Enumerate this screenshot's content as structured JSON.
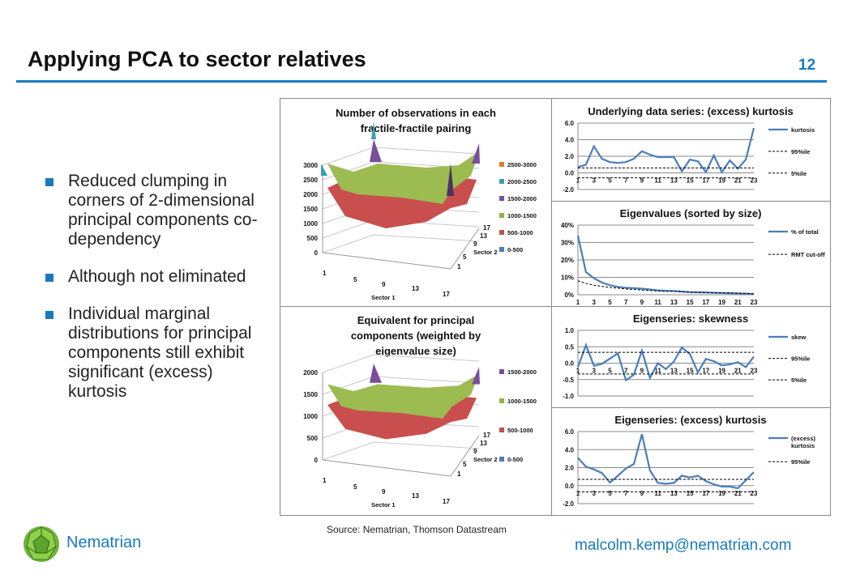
{
  "slide": {
    "title": "Applying PCA to sector relatives",
    "page_number": "12",
    "bullets": [
      "Reduced clumping in corners of 2-dimensional principal components co-dependency",
      "Although not eliminated",
      "Individual marginal distributions for principal components still exhibit significant (excess) kurtosis"
    ],
    "source": "Source: Nematrian, Thomson Datastream",
    "brand": "Nematrian",
    "email": "malcolm.kemp@nematrian.com"
  },
  "colors": {
    "accent": "#1a7abf",
    "series": "#4a7ebb",
    "dashed": "#000000"
  },
  "chart_data": [
    {
      "type": "surface",
      "title": "Number of observations in each fractile-fractile pairing",
      "xlabel": "Sector 1",
      "ylabel": "Sector 2",
      "zticks": [
        "0",
        "500",
        "1000",
        "1500",
        "2000",
        "2500",
        "3000"
      ],
      "xticks": [
        "1",
        "5",
        "9",
        "13",
        "17"
      ],
      "yticks": [
        "1",
        "5",
        "9",
        "13",
        "17"
      ],
      "legend": [
        "2500-3000",
        "2000-2500",
        "1500-2000",
        "1000-1500",
        "500-1000",
        "0-500"
      ],
      "legend_colors": [
        "#e07b2c",
        "#3b9db3",
        "#7a4e9c",
        "#8db446",
        "#c0504d",
        "#4a7ebb"
      ]
    },
    {
      "type": "line",
      "title": "Underlying data series: (excess) kurtosis",
      "x": [
        1,
        2,
        3,
        4,
        5,
        6,
        7,
        8,
        9,
        10,
        11,
        12,
        13,
        14,
        15,
        16,
        17,
        18,
        19,
        20,
        21,
        22,
        23
      ],
      "xticks": [
        "1",
        "3",
        "5",
        "7",
        "9",
        "11",
        "13",
        "15",
        "17",
        "19",
        "21",
        "23"
      ],
      "ylim": [
        -2,
        6
      ],
      "yticks": [
        "-2.0",
        "0.0",
        "2.0",
        "4.0",
        "6.0"
      ],
      "ytick_values": [
        -2,
        0,
        2,
        4,
        6
      ],
      "series": [
        {
          "name": "kurtosis",
          "style": "solid",
          "values": [
            0.7,
            1.0,
            3.2,
            1.7,
            1.3,
            1.2,
            1.3,
            1.7,
            2.6,
            2.2,
            1.9,
            1.9,
            1.9,
            0.2,
            1.6,
            1.4,
            0.1,
            2.1,
            0.1,
            1.5,
            0.5,
            1.6,
            5.4
          ]
        },
        {
          "name": "95%ile",
          "style": "dashed",
          "constant": 0.6
        },
        {
          "name": "5%ile",
          "style": "dashed",
          "constant": -0.6
        }
      ]
    },
    {
      "type": "line",
      "title": "Eigenvalues (sorted by size)",
      "x": [
        1,
        2,
        3,
        4,
        5,
        6,
        7,
        8,
        9,
        10,
        11,
        12,
        13,
        14,
        15,
        16,
        17,
        18,
        19,
        20,
        21,
        22,
        23
      ],
      "xticks": [
        "1",
        "3",
        "5",
        "7",
        "9",
        "11",
        "13",
        "15",
        "17",
        "19",
        "21",
        "23"
      ],
      "ylim": [
        0,
        40
      ],
      "yticks": [
        "0%",
        "10%",
        "20%",
        "30%",
        "40%"
      ],
      "ytick_values": [
        0,
        10,
        20,
        30,
        40
      ],
      "series": [
        {
          "name": "% of total",
          "style": "solid",
          "values": [
            34,
            13,
            9.5,
            7,
            5.5,
            4.5,
            4,
            3.8,
            3.5,
            3,
            2.5,
            2.3,
            2.2,
            1.8,
            1.5,
            1.4,
            1.3,
            1.1,
            1,
            0.9,
            0.8,
            0.6,
            0.4
          ]
        },
        {
          "name": "RMT cut-off",
          "style": "dashed",
          "values": [
            8,
            6.5,
            5.5,
            4.8,
            4.2,
            3.8,
            3.3,
            3,
            2.7,
            2.4,
            2.2,
            2,
            1.9,
            1.7,
            1.5,
            1.4,
            1.3,
            1.2,
            1.1,
            1,
            0.9,
            0.8,
            0.6
          ]
        }
      ]
    },
    {
      "type": "surface",
      "title": "Equivalent for principal components (weighted by eigenvalue size)",
      "xlabel": "Sector 1",
      "ylabel": "Sector 2",
      "zticks": [
        "0",
        "500",
        "1000",
        "1500",
        "2000"
      ],
      "xticks": [
        "1",
        "5",
        "9",
        "13",
        "17"
      ],
      "yticks": [
        "1",
        "5",
        "9",
        "13",
        "17"
      ],
      "legend": [
        "1500-2000",
        "1000-1500",
        "500-1000",
        "0-500"
      ],
      "legend_colors": [
        "#7a4e9c",
        "#8db446",
        "#c0504d",
        "#4a7ebb"
      ]
    },
    {
      "type": "line",
      "title": "Eigenseries: skewness",
      "x": [
        1,
        2,
        3,
        4,
        5,
        6,
        7,
        8,
        9,
        10,
        11,
        12,
        13,
        14,
        15,
        16,
        17,
        18,
        19,
        20,
        21,
        22,
        23
      ],
      "xticks": [
        "1",
        "3",
        "5",
        "7",
        "9",
        "11",
        "13",
        "15",
        "17",
        "19",
        "21",
        "23"
      ],
      "ylim": [
        -1,
        1
      ],
      "yticks": [
        "-1.0",
        "-0.5",
        "0.0",
        "0.5",
        "1.0"
      ],
      "ytick_values": [
        -1,
        -0.5,
        0,
        0.5,
        1
      ],
      "series": [
        {
          "name": "skew",
          "style": "solid",
          "values": [
            -0.12,
            0.55,
            -0.08,
            -0.02,
            0.14,
            0.3,
            -0.52,
            -0.35,
            0.38,
            -0.45,
            0,
            -0.18,
            0.05,
            0.48,
            0.28,
            -0.28,
            0.13,
            0.06,
            -0.07,
            -0.04,
            0.03,
            -0.12,
            0.2
          ]
        },
        {
          "name": "95%ile",
          "style": "dashed",
          "constant": 0.33
        },
        {
          "name": "5%ile",
          "style": "dashed",
          "constant": -0.33
        }
      ]
    },
    {
      "type": "line",
      "title": "Eigenseries: (excess) kurtosis",
      "x": [
        1,
        2,
        3,
        4,
        5,
        6,
        7,
        8,
        9,
        10,
        11,
        12,
        13,
        14,
        15,
        16,
        17,
        18,
        19,
        20,
        21,
        22,
        23
      ],
      "xticks": [
        "1",
        "3",
        "5",
        "7",
        "9",
        "11",
        "13",
        "15",
        "17",
        "19",
        "21",
        "23"
      ],
      "ylim": [
        -2,
        6
      ],
      "yticks": [
        "-2.0",
        "0.0",
        "2.0",
        "4.0",
        "6.0"
      ],
      "ytick_values": [
        -2,
        0,
        2,
        4,
        6
      ],
      "series": [
        {
          "name": "(excess) kurtosis",
          "style": "solid",
          "values": [
            3.1,
            2.1,
            1.8,
            1.4,
            0.35,
            1.1,
            1.9,
            2.4,
            5.7,
            1.7,
            0.3,
            0.2,
            0.3,
            1.1,
            0.9,
            1.1,
            0.5,
            0.15,
            -0.1,
            -0.1,
            -0.3,
            0.6,
            1.5
          ]
        },
        {
          "name": "95%ile",
          "style": "dashed",
          "constant": 0.7
        },
        {
          "name": "",
          "style": "dashed",
          "constant": -0.7
        }
      ]
    }
  ]
}
